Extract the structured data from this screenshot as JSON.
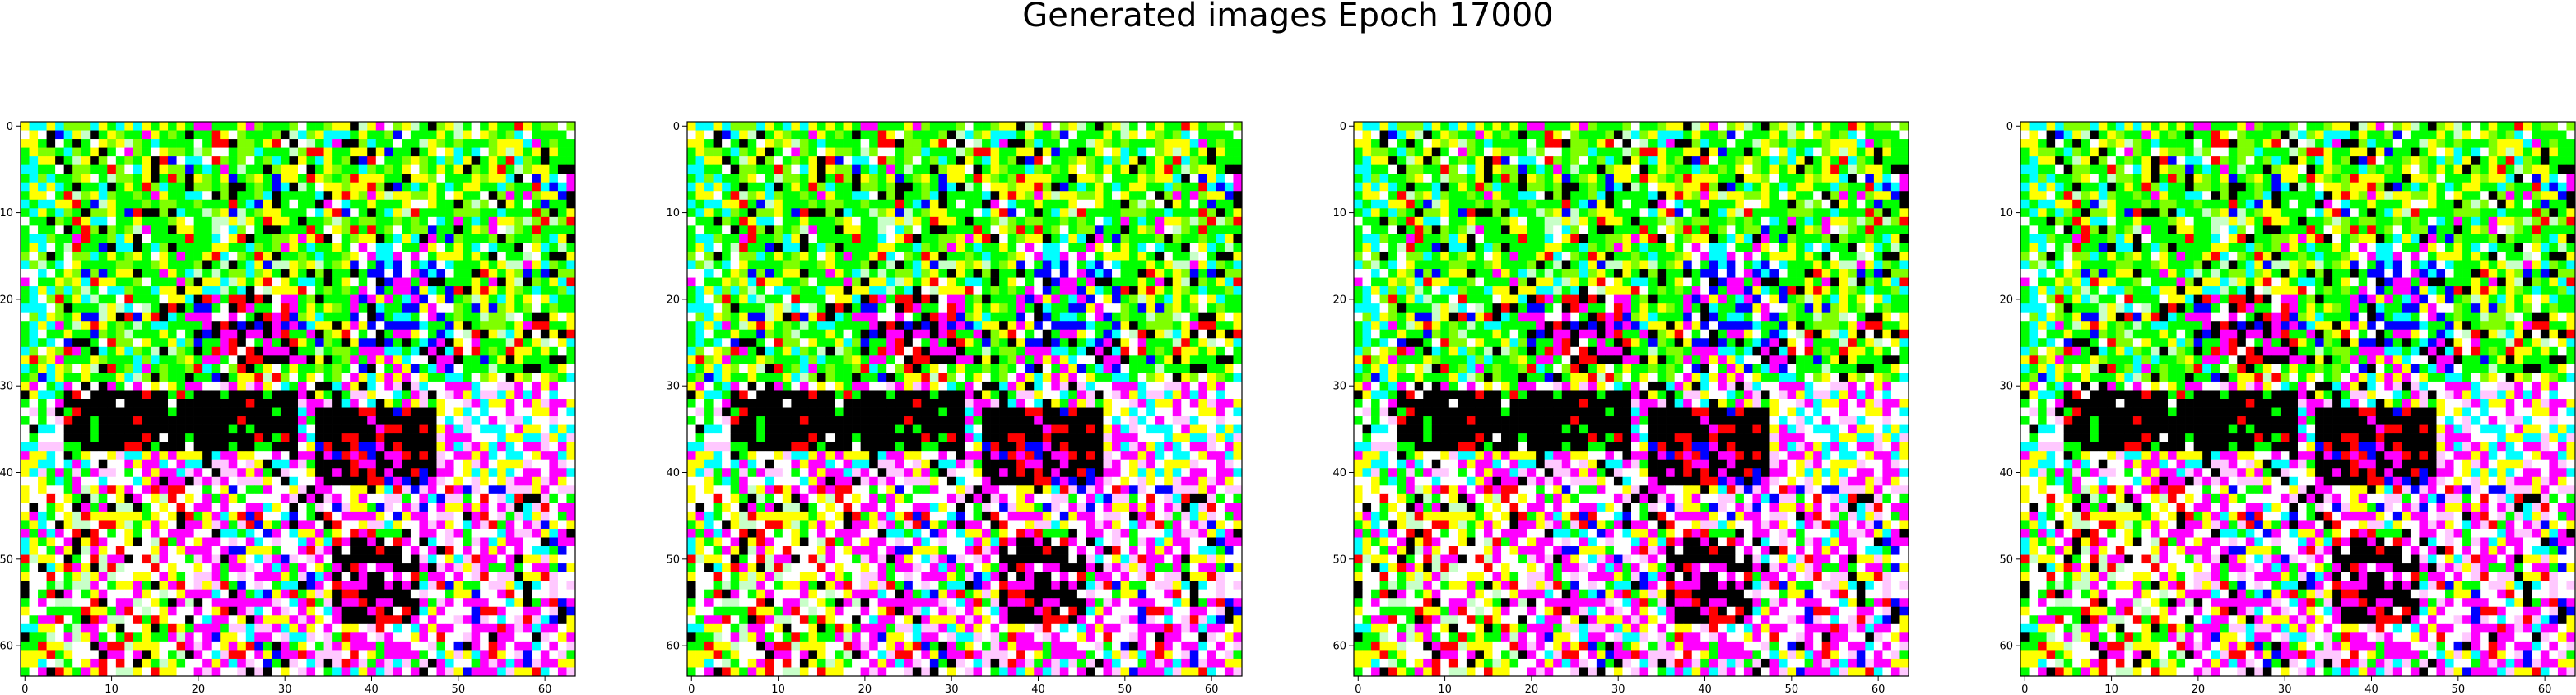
{
  "figure": {
    "title": "Generated images Epoch 17000",
    "subplot_count": 4,
    "grid_size": 64,
    "x_ticks": [
      "0",
      "10",
      "20",
      "30",
      "40",
      "50",
      "60"
    ],
    "y_ticks": [
      "0",
      "10",
      "20",
      "30",
      "40",
      "50",
      "60"
    ],
    "x_tick_values": [
      0,
      10,
      20,
      30,
      40,
      50,
      60
    ],
    "y_tick_values": [
      0,
      10,
      20,
      30,
      40,
      50,
      60
    ],
    "axis_range": [
      -0.5,
      63.5
    ],
    "palette": {
      "green": "#00ff00",
      "lime": "#7fff00",
      "yellow": "#ffff00",
      "cyan": "#00ffff",
      "magenta": "#ff00ff",
      "blue": "#0000ff",
      "red": "#ff0000",
      "black": "#000000",
      "white": "#ffffff",
      "pale-pink": "#ffc8ff",
      "pale-green": "#c8ffc8",
      "pale-blue": "#c8f0ff"
    }
  }
}
